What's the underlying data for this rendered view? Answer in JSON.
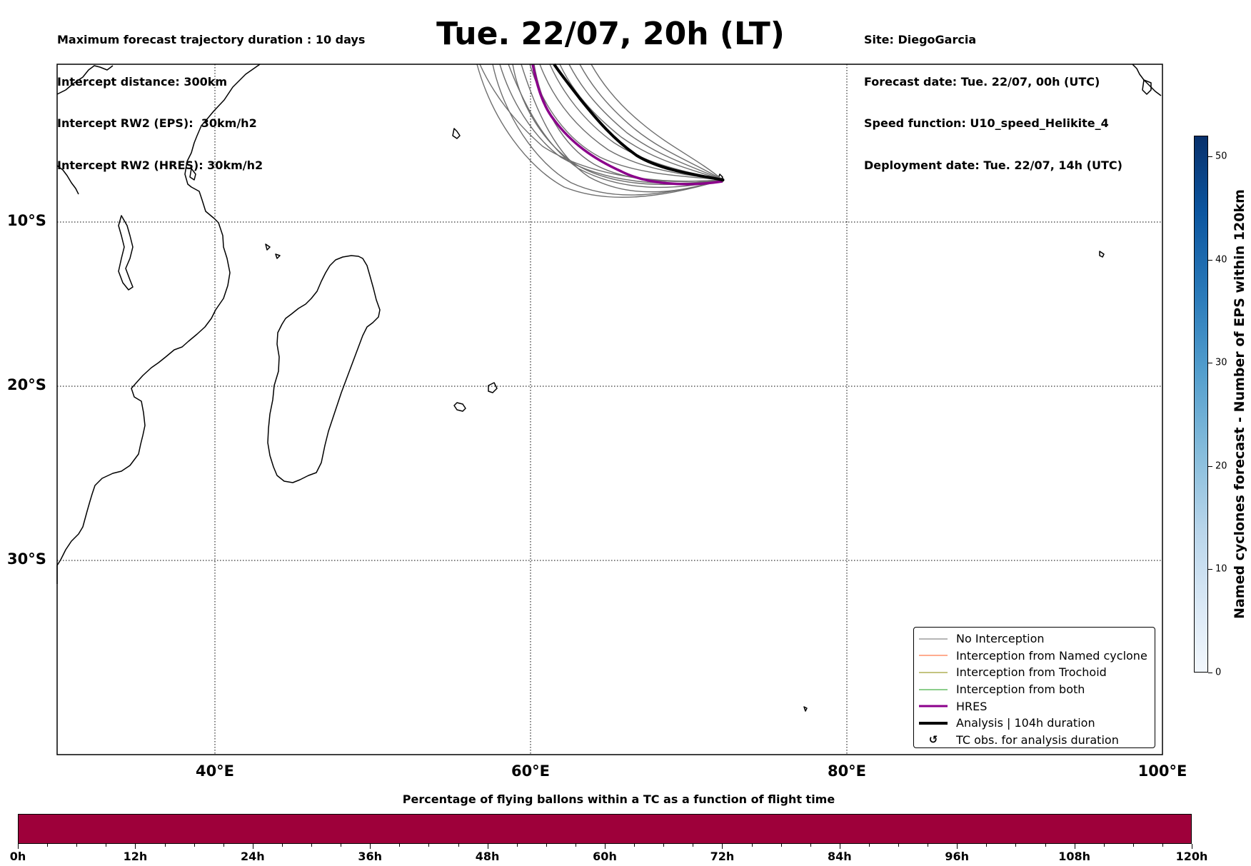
{
  "header": {
    "left_lines": [
      "Maximum forecast trajectory duration : 10 days",
      "Intercept distance: 300km",
      "Intercept RW2 (EPS):  30km/h2",
      "Intercept RW2 (HRES): 30km/h2"
    ],
    "title": "Tue. 22/07, 20h (LT)",
    "right_lines": [
      "Site: DiegoGarcia",
      "Forecast date: Tue. 22/07, 00h (UTC)",
      "Speed function: U10_speed_Helikite_4",
      "Deployment date: Tue. 22/07, 14h (UTC)"
    ]
  },
  "map": {
    "lon_labels": [
      "40°E",
      "60°E",
      "80°E",
      "100°E"
    ],
    "lat_labels": [
      "10°S",
      "20°S",
      "30°S"
    ],
    "colors": {
      "ensemble": "#6e6e6e",
      "hres": "#8b008b",
      "analysis": "#000000"
    }
  },
  "legend": {
    "items": [
      {
        "label": "No Interception",
        "color": "#6e6e6e",
        "kind": "line",
        "width": 1
      },
      {
        "label": "Interception from Named cyclone",
        "color": "#ff5a1f",
        "kind": "line",
        "width": 1
      },
      {
        "label": "Interception from Trochoid",
        "color": "#8a8a00",
        "kind": "line",
        "width": 1
      },
      {
        "label": "Interception from both",
        "color": "#1a9e1a",
        "kind": "line",
        "width": 1
      },
      {
        "label": "HRES",
        "color": "#8b008b",
        "kind": "line",
        "width": 3
      },
      {
        "label": "Analysis | 104h duration",
        "color": "#000000",
        "kind": "line",
        "width": 4
      },
      {
        "label": "TC obs. for analysis duration",
        "color": "#000000",
        "kind": "glyph",
        "glyph": "↺"
      }
    ]
  },
  "colorbar": {
    "title": "Named cyclones forecast - Number of EPS within 120km",
    "ticks": [
      "0",
      "10",
      "20",
      "30",
      "40",
      "50"
    ]
  },
  "timebar": {
    "title": "Percentage of flying ballons within a TC as a function of flight time",
    "labels": [
      "0h",
      "12h",
      "24h",
      "36h",
      "48h",
      "60h",
      "72h",
      "84h",
      "96h",
      "108h",
      "120h"
    ],
    "color": "#9e003a"
  }
}
